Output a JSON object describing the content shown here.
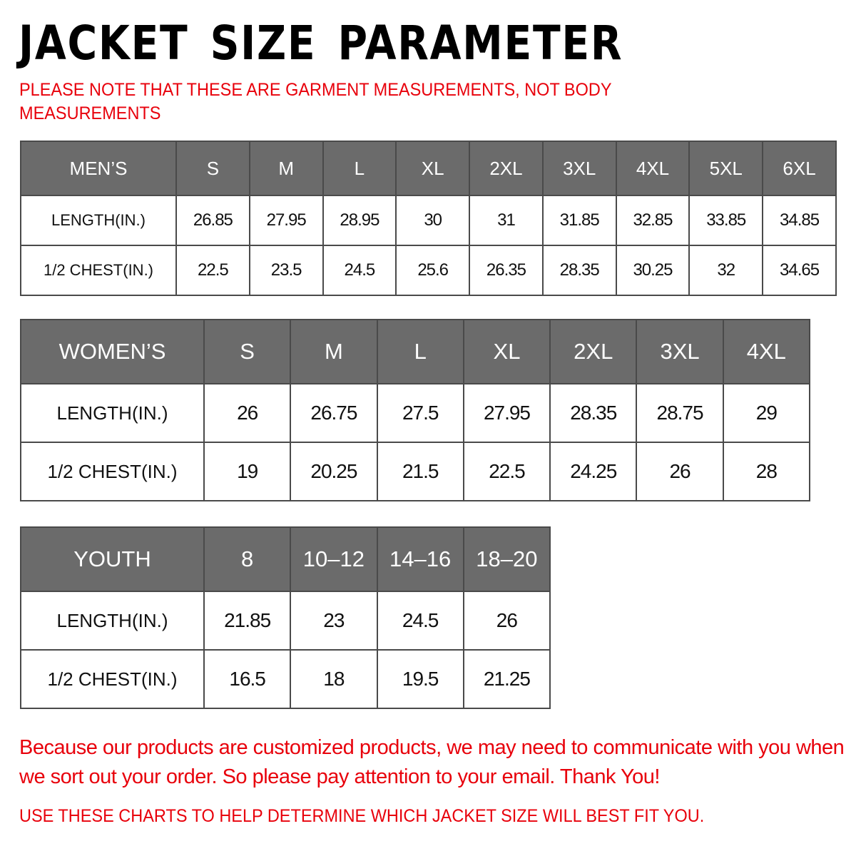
{
  "title": "JACKET SIZE PARAMETER",
  "note": "PLEASE NOTE THAT THESE ARE GARMENT MEASUREMENTS, NOT BODY MEASUREMENTS",
  "colors": {
    "header_bg": "#6b6b6b",
    "accent_red": "#e8000b"
  },
  "tables": {
    "men": {
      "header": [
        "MEN’S",
        "S",
        "M",
        "L",
        "XL",
        "2XL",
        "3XL",
        "4XL",
        "5XL",
        "6XL"
      ],
      "rows": [
        [
          "LENGTH(IN.)",
          "26.85",
          "27.95",
          "28.95",
          "30",
          "31",
          "31.85",
          "32.85",
          "33.85",
          "34.85"
        ],
        [
          "1/2 CHEST(IN.)",
          "22.5",
          "23.5",
          "24.5",
          "25.6",
          "26.35",
          "28.35",
          "30.25",
          "32",
          "34.65"
        ]
      ]
    },
    "women": {
      "header": [
        "WOMEN’S",
        "S",
        "M",
        "L",
        "XL",
        "2XL",
        "3XL",
        "4XL"
      ],
      "rows": [
        [
          "LENGTH(IN.)",
          "26",
          "26.75",
          "27.5",
          "27.95",
          "28.35",
          "28.75",
          "29"
        ],
        [
          "1/2 CHEST(IN.)",
          "19",
          "20.25",
          "21.5",
          "22.5",
          "24.25",
          "26",
          "28"
        ]
      ]
    },
    "youth": {
      "header": [
        "YOUTH",
        "8",
        "10–12",
        "14–16",
        "18–20"
      ],
      "rows": [
        [
          "LENGTH(IN.)",
          "21.85",
          "23",
          "24.5",
          "26"
        ],
        [
          "1/2 CHEST(IN.)",
          "16.5",
          "18",
          "19.5",
          "21.25"
        ]
      ]
    }
  },
  "footer": {
    "message": "Because our products are customized products, we may need to communicate with you when we sort out your order. So please pay attention to your email. Thank You!",
    "instruction": "USE THESE CHARTS TO HELP DETERMINE WHICH JACKET SIZE WILL BEST FIT YOU."
  }
}
